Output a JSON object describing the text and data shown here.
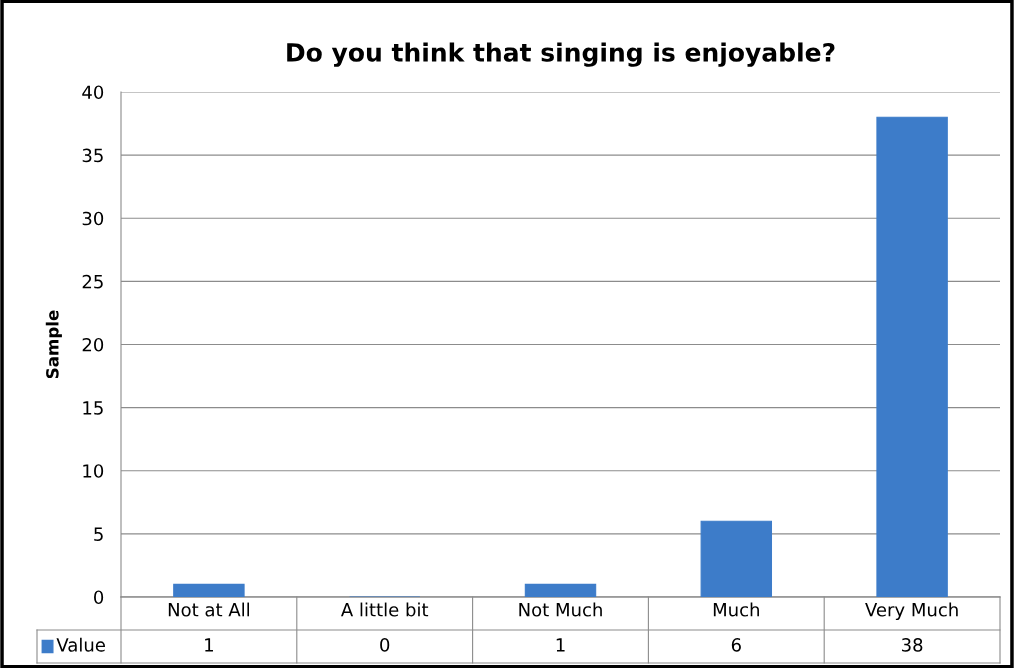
{
  "chart_data": {
    "type": "bar",
    "title": "Do you think that singing is enjoyable?",
    "ylabel": "Sample",
    "categories": [
      "Not at All",
      "A little bit",
      "Not Much",
      "Much",
      "Very Much"
    ],
    "series": [
      {
        "name": "Value",
        "color": "#3d7cc9",
        "values": [
          1,
          0,
          1,
          6,
          38
        ]
      }
    ],
    "ylim": [
      0,
      40
    ],
    "yticks": [
      0,
      5,
      10,
      15,
      20,
      25,
      30,
      35,
      40
    ],
    "grid": "y",
    "data_labels": true
  }
}
